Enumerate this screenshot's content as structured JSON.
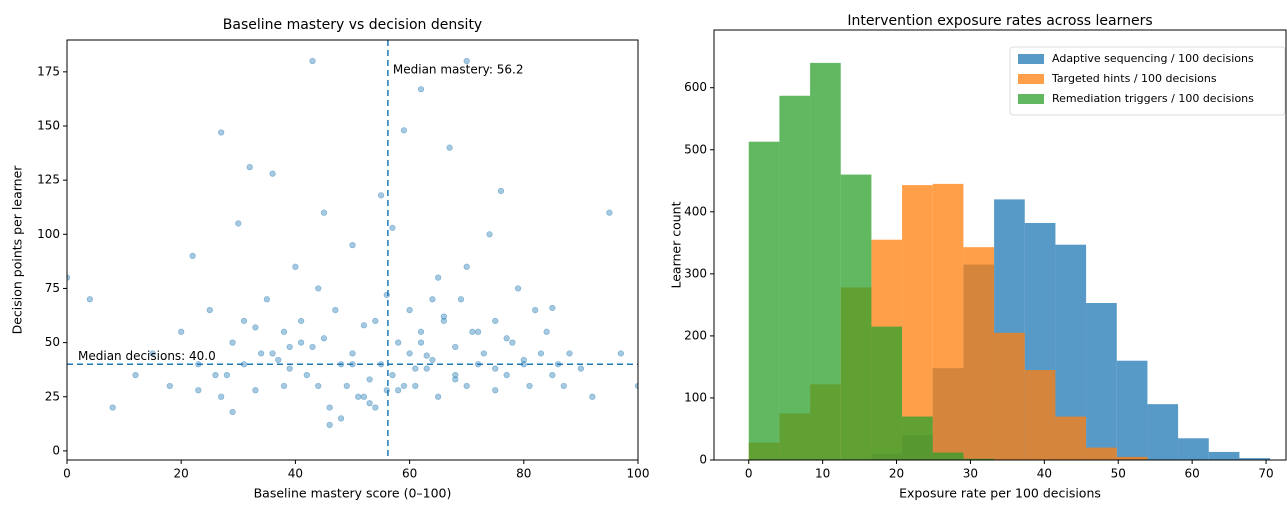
{
  "chart_data": [
    {
      "type": "scatter",
      "title": "Baseline mastery vs decision density",
      "x_label": "Baseline mastery score (0–100)",
      "y_label": "Decision points per learner",
      "xlim": [
        0,
        100
      ],
      "ylim": [
        -4.2,
        189.7
      ],
      "xticks": [
        0,
        20,
        40,
        60,
        80,
        100
      ],
      "yticks": [
        0,
        25,
        50,
        75,
        100,
        125,
        150,
        175
      ],
      "grid": false,
      "series": [
        {
          "color": "#1f77b4",
          "x": [
            0,
            4,
            8,
            12,
            15,
            18,
            20,
            22,
            23,
            25,
            27,
            27,
            28,
            29,
            30,
            31,
            32,
            33,
            34,
            35,
            36,
            37,
            38,
            38,
            39,
            40,
            41,
            42,
            43,
            43,
            44,
            45,
            45,
            46,
            47,
            48,
            49,
            50,
            50,
            51,
            52,
            53,
            54,
            55,
            55,
            56,
            57,
            58,
            58,
            59,
            60,
            60,
            61,
            62,
            62,
            63,
            64,
            65,
            65,
            66,
            67,
            68,
            68,
            69,
            70,
            70,
            71,
            72,
            73,
            74,
            75,
            75,
            76,
            77,
            78,
            79,
            80,
            81,
            82,
            83,
            84,
            85,
            86,
            87,
            88,
            90,
            92,
            95,
            97,
            100,
            44,
            53,
            62,
            70,
            23,
            31,
            57,
            66,
            75,
            48,
            36,
            59,
            64,
            72,
            80,
            26,
            41,
            46,
            52,
            68,
            33,
            39,
            54,
            61,
            77,
            85,
            29,
            50,
            56,
            63
          ],
          "values": [
            80,
            70,
            20,
            35,
            45,
            30,
            55,
            90,
            40,
            65,
            147,
            25,
            35,
            50,
            105,
            60,
            131,
            28,
            45,
            70,
            128,
            42,
            55,
            30,
            38,
            85,
            60,
            35,
            180,
            48,
            30,
            110,
            52,
            20,
            65,
            40,
            30,
            95,
            45,
            25,
            58,
            33,
            60,
            40,
            118,
            72,
            35,
            50,
            28,
            148,
            45,
            65,
            30,
            55,
            167,
            38,
            42,
            80,
            25,
            60,
            140,
            35,
            48,
            70,
            180,
            30,
            55,
            40,
            45,
            100,
            28,
            60,
            120,
            35,
            50,
            75,
            40,
            30,
            65,
            45,
            55,
            35,
            40,
            30,
            45,
            38,
            25,
            110,
            45,
            30,
            75,
            22,
            50,
            85,
            28,
            40,
            103,
            62,
            38,
            15,
            45,
            30,
            70,
            55,
            42,
            35,
            50,
            12,
            25,
            33,
            57,
            48,
            20,
            38,
            52,
            66,
            18,
            40,
            28,
            44
          ]
        }
      ],
      "reference_lines": [
        {
          "axis": "x",
          "value": 56.2,
          "label": "Median mastery: 56.2",
          "color": "#1f77b4"
        },
        {
          "axis": "y",
          "value": 40.0,
          "label": "Median decisions: 40.0",
          "color": "#1f77b4"
        }
      ]
    },
    {
      "type": "histogram",
      "title": "Intervention exposure rates across learners",
      "x_label": "Exposure rate per 100 decisions",
      "y_label": "Learner count",
      "xlim": [
        -4.7,
        72.7
      ],
      "ylim": [
        0,
        693
      ],
      "xticks": [
        0,
        10,
        20,
        30,
        40,
        50,
        60,
        70
      ],
      "yticks": [
        0,
        100,
        200,
        300,
        400,
        500,
        600
      ],
      "legend": "upper right",
      "bins": [
        0,
        4.15,
        8.3,
        12.45,
        16.6,
        20.75,
        24.9,
        29.05,
        33.2,
        37.35,
        41.5,
        45.65,
        49.8,
        53.95,
        58.1,
        62.25,
        66.4,
        70.55
      ],
      "series": [
        {
          "name": "Adaptive sequencing / 100 decisions",
          "color": "#1f77b4",
          "values": [
            0,
            0,
            0,
            0,
            10,
            40,
            148,
            315,
            420,
            382,
            347,
            253,
            160,
            90,
            35,
            13,
            3
          ]
        },
        {
          "name": "Targeted hints / 100 decisions",
          "color": "#ff7f0e",
          "values": [
            28,
            75,
            122,
            278,
            355,
            443,
            445,
            343,
            205,
            145,
            70,
            20,
            5,
            0,
            0,
            0,
            0
          ]
        },
        {
          "name": "Remediation triggers / 100 decisions",
          "color": "#2ca02c",
          "values": [
            513,
            587,
            640,
            460,
            215,
            70,
            12,
            2,
            0,
            0,
            0,
            0,
            0,
            0,
            0,
            0,
            0
          ]
        }
      ]
    }
  ]
}
